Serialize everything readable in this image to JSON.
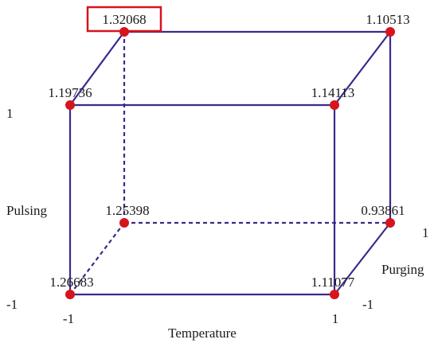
{
  "axes": {
    "temperature": {
      "name": "Temperature",
      "low": "-1",
      "high": "1"
    },
    "pulsing": {
      "name": "Pulsing",
      "low": "-1",
      "high": "1"
    },
    "purging": {
      "name": "Purging",
      "low": "-1",
      "high": "1"
    }
  },
  "vertices": {
    "back_top_left": "1.32068",
    "back_top_right": "1.10513",
    "front_top_left": "1.19736",
    "front_top_right": "1.14113",
    "back_bottom_left": "1.25398",
    "back_bottom_right": "0.93861",
    "front_bottom_left": "1.26683",
    "front_bottom_right": "1.11077"
  },
  "highlighted_vertex": "back_top_left",
  "colors": {
    "edge": "#3b2a8c",
    "vertex": "#d6141c",
    "highlight": "#d6141c"
  }
}
